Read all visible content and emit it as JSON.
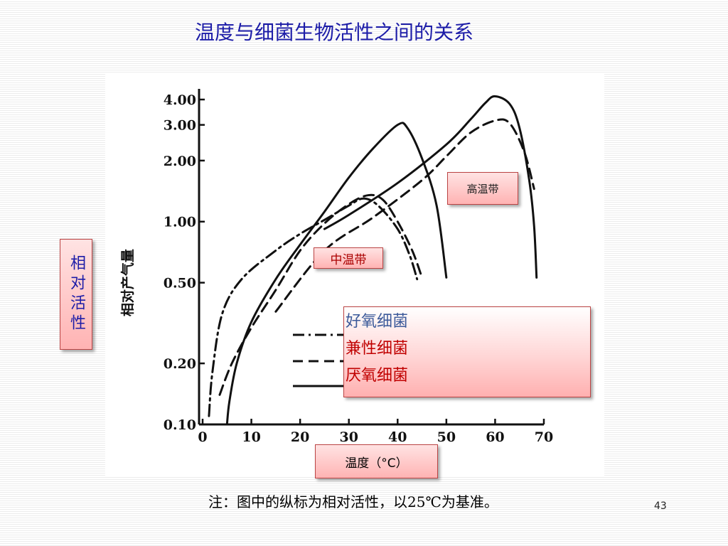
{
  "title": "温度与细菌生物活性之间的关系",
  "tags": {
    "thermophilic": "高温带",
    "mesophilic": "中温带",
    "x_axis": "温度（°C）",
    "y_axis": "相对活性"
  },
  "y_axis_printed_label": "相对产气量",
  "footnote": "注：图中的纵标为相对活性，以25℃为基准。",
  "page_number": "43",
  "colors": {
    "title": "#1d1da8",
    "aerobic": "#3c5a9a",
    "facultative": "#c00000",
    "anaerobic": "#c00000"
  },
  "chart_data": {
    "type": "line",
    "title": "温度与细菌生物活性之间的关系",
    "xlabel": "温度（°C）",
    "ylabel": "相对产气量",
    "xlim": [
      0,
      70
    ],
    "ylim": [
      0.1,
      4.0
    ],
    "yscale": "log",
    "x_ticks": [
      0,
      10,
      20,
      30,
      40,
      50,
      60,
      70
    ],
    "y_ticks": [
      0.1,
      0.2,
      0.5,
      1.0,
      2.0,
      3.0,
      4.0
    ],
    "y_tick_labels": [
      "0.10",
      "0.20",
      "0.50",
      "1.00",
      "2.00",
      "3.00",
      "4.00"
    ],
    "x_tick_labels": [
      "0",
      "10",
      "20",
      "30",
      "40",
      "50",
      "60",
      "70"
    ],
    "legend_position": "lower-right",
    "series": [
      {
        "name": "好氧细菌",
        "style": "dashdot",
        "group": "中温带",
        "points": [
          [
            1.3,
            0.11
          ],
          [
            2,
            0.18
          ],
          [
            4,
            0.35
          ],
          [
            8,
            0.52
          ],
          [
            15,
            0.72
          ],
          [
            20,
            0.87
          ],
          [
            25,
            1.02
          ],
          [
            30,
            1.2
          ],
          [
            33,
            1.3
          ],
          [
            36,
            1.2
          ],
          [
            40,
            0.92
          ],
          [
            42.5,
            0.68
          ],
          [
            44,
            0.52
          ]
        ]
      },
      {
        "name": "兼性细菌",
        "style": "dashed",
        "group": "中温带",
        "points": [
          [
            3.5,
            0.14
          ],
          [
            6,
            0.2
          ],
          [
            10,
            0.3
          ],
          [
            15,
            0.46
          ],
          [
            20,
            0.72
          ],
          [
            25,
            0.98
          ],
          [
            30,
            1.22
          ],
          [
            34,
            1.35
          ],
          [
            37,
            1.28
          ],
          [
            40,
            1.0
          ],
          [
            43,
            0.72
          ],
          [
            45,
            0.53
          ]
        ]
      },
      {
        "name": "厌氧细菌",
        "style": "solid",
        "group": "中温带",
        "points": [
          [
            5,
            0.1
          ],
          [
            5.5,
            0.13
          ],
          [
            7,
            0.2
          ],
          [
            10,
            0.32
          ],
          [
            15,
            0.52
          ],
          [
            20,
            0.77
          ],
          [
            25,
            1.12
          ],
          [
            30,
            1.65
          ],
          [
            35,
            2.3
          ],
          [
            40,
            3.0
          ],
          [
            42,
            2.9
          ],
          [
            45,
            2.05
          ],
          [
            48,
            1.2
          ],
          [
            50,
            0.53
          ]
        ]
      },
      {
        "name": "兼性细菌",
        "style": "dashed",
        "group": "高温带",
        "points": [
          [
            15,
            0.36
          ],
          [
            25,
            0.72
          ],
          [
            35,
            1.05
          ],
          [
            45,
            1.6
          ],
          [
            50,
            2.1
          ],
          [
            55,
            2.75
          ],
          [
            60,
            3.15
          ],
          [
            63,
            3.05
          ],
          [
            66,
            2.2
          ],
          [
            68,
            1.45
          ]
        ]
      },
      {
        "name": "厌氧细菌",
        "style": "solid",
        "group": "高温带",
        "points": [
          [
            25,
            0.92
          ],
          [
            30,
            1.08
          ],
          [
            40,
            1.55
          ],
          [
            50,
            2.4
          ],
          [
            55,
            3.2
          ],
          [
            58,
            3.85
          ],
          [
            60,
            4.15
          ],
          [
            63,
            3.8
          ],
          [
            65,
            2.9
          ],
          [
            67,
            1.6
          ],
          [
            68,
            0.95
          ],
          [
            68.5,
            0.53
          ]
        ]
      }
    ]
  }
}
